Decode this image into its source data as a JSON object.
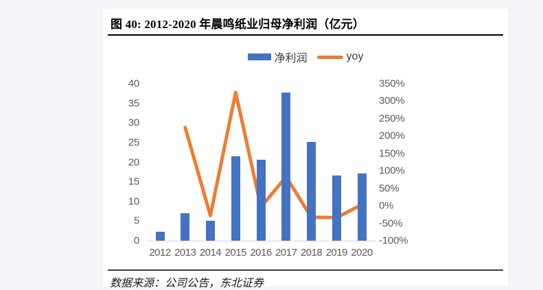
{
  "figure": {
    "title": "图 40: 2012-2020 年晨鸣纸业归母净利润（亿元）",
    "source": "数据来源：公司公告，东北证券"
  },
  "colors": {
    "bar": "#4472C4",
    "line": "#ED7D31",
    "axis_text": "#595959",
    "baseline": "#d9d9d9",
    "card_background": "#ffffff",
    "page_background": "#f4f5f8"
  },
  "chart_data": {
    "type": "bar",
    "subtype": "combo-bar-line",
    "title": "图 40: 2012-2020 年晨鸣纸业归母净利润（亿元）",
    "categories": [
      "2012",
      "2013",
      "2014",
      "2015",
      "2016",
      "2017",
      "2018",
      "2019",
      "2020"
    ],
    "series": [
      {
        "name": "净利润",
        "type": "bar",
        "axis": "left",
        "color": "#4472C4",
        "values": [
          2.2,
          7.0,
          5.1,
          21.5,
          20.6,
          37.7,
          25.1,
          16.6,
          17.2
        ]
      },
      {
        "name": "yoy",
        "type": "line",
        "axis": "right",
        "unit": "%",
        "color": "#ED7D31",
        "values": [
          null,
          224,
          -28,
          325,
          -4,
          83,
          -33,
          -34,
          3
        ]
      }
    ],
    "left_axis": {
      "min": 0,
      "max": 40,
      "step": 5,
      "ticks": [
        "40",
        "35",
        "30",
        "25",
        "20",
        "15",
        "10",
        "5",
        "0"
      ]
    },
    "right_axis": {
      "min": -100,
      "max": 350,
      "step": 50,
      "ticks": [
        "350%",
        "300%",
        "250%",
        "200%",
        "150%",
        "100%",
        "50%",
        "0%",
        "-50%",
        "-100%"
      ]
    },
    "grid": false,
    "legend_position": "top-center"
  }
}
